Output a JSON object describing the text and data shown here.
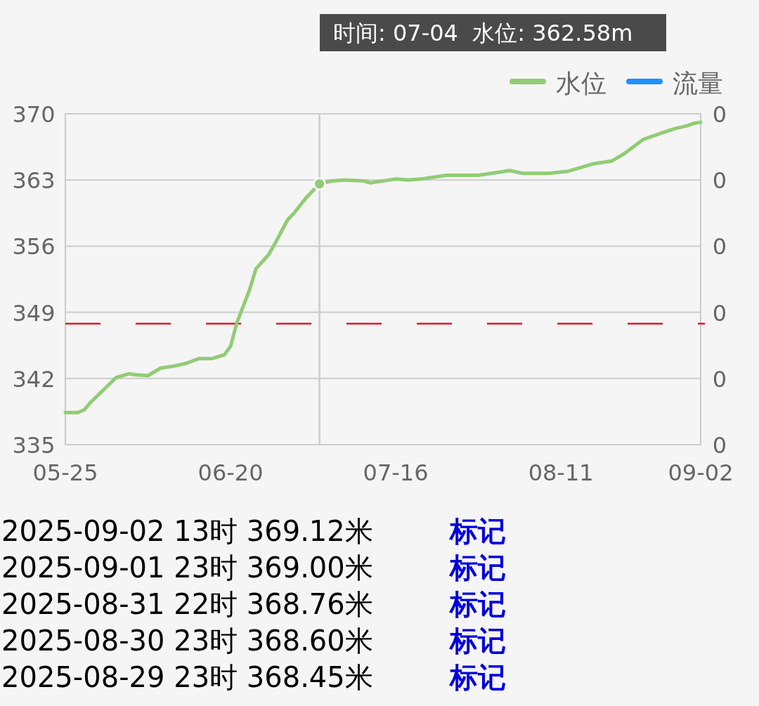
{
  "chart_data": {
    "type": "line",
    "x": [
      "--05-25",
      "--05-27",
      "--05-28",
      "--05-29",
      "--05-31",
      "--06-02",
      "--06-04",
      "--06-05",
      "--06-07",
      "--06-09",
      "--06-11",
      "--06-13",
      "--06-15",
      "--06-17",
      "--06-19",
      "--06-20",
      "--06-21",
      "--06-23",
      "--06-24",
      "--06-26",
      "--06-27",
      "--06-29",
      "--06-30",
      "--07-02",
      "--07-04",
      "--07-06",
      "--07-08",
      "--07-11",
      "--07-12",
      "--07-16",
      "--07-18",
      "--07-20",
      "--07-24",
      "--07-29",
      "--08-01",
      "--08-03",
      "--08-05",
      "--08-09",
      "--08-12",
      "--08-16",
      "--08-19",
      "--08-21",
      "--08-24",
      "--08-27",
      "--08-29",
      "--08-30",
      "--08-31",
      "--09-01",
      "--09-02"
    ],
    "series": [
      {
        "name": "水位",
        "color": "#91cc75",
        "values": [
          338.4,
          338.4,
          338.7,
          339.5,
          340.8,
          342.1,
          342.5,
          342.4,
          342.3,
          343.1,
          343.3,
          343.6,
          344.1,
          344.1,
          344.5,
          345.4,
          347.9,
          351.4,
          353.6,
          355.1,
          356.3,
          358.8,
          359.5,
          361.2,
          362.58,
          362.9,
          363.0,
          362.9,
          362.7,
          363.1,
          363.0,
          363.1,
          363.5,
          363.5,
          363.8,
          364.0,
          363.7,
          363.7,
          363.9,
          364.7,
          365.0,
          365.8,
          367.3,
          368.0,
          368.45,
          368.6,
          368.76,
          369.0,
          369.12
        ]
      },
      {
        "name": "流量",
        "color": "#1e90ff",
        "values": [
          null,
          null,
          null,
          null,
          null,
          null,
          null,
          null,
          null,
          null,
          null,
          null,
          null,
          null,
          null,
          null,
          null,
          null,
          null,
          null,
          null,
          null,
          null,
          null,
          null,
          null,
          null,
          null,
          null,
          null,
          null,
          null,
          null,
          null,
          null,
          null,
          null,
          null,
          null,
          null,
          null,
          null,
          null,
          null,
          null,
          null,
          null,
          null,
          null
        ]
      }
    ],
    "xlim": [
      "--05-25",
      "--09-02"
    ],
    "xticks": [
      {
        "value": "--05-25",
        "label": "05-25"
      },
      {
        "value": "--06-20",
        "label": "06-20"
      },
      {
        "value": "--07-16",
        "label": "07-16"
      },
      {
        "value": "--08-11",
        "label": "08-11"
      },
      {
        "value": "--09-02",
        "label": "09-02"
      }
    ],
    "ylim": [
      335,
      370
    ],
    "yticks": [
      335,
      342,
      349,
      356,
      363,
      370
    ],
    "y2lim": [
      0,
      0.25
    ],
    "y2ticks": [
      {
        "value": 0,
        "label": "0"
      },
      {
        "value": 0.05,
        "label": "0"
      },
      {
        "value": 0.1,
        "label": "0"
      },
      {
        "value": 0.15,
        "label": "0"
      },
      {
        "value": 0.2,
        "label": "0"
      },
      {
        "value": 0.25,
        "label": "0"
      }
    ],
    "grid": "y",
    "legend": "top right",
    "marker": "none",
    "line_style": "solid",
    "ref_lines": [
      {
        "axis": "y",
        "value": 347.8,
        "color": "#e0182c",
        "line_style": "dashed"
      },
      {
        "axis": "x",
        "value": "--07-04",
        "color": "#cccccc",
        "line_style": "solid"
      }
    ],
    "annotations": [
      "时间: 07-04  水位: 362.58m",
      "2025-09-02 13时 369.12米",
      "标记",
      "2025-09-01 23时 369.00米",
      "标记",
      "2025-08-31 22时 368.76米",
      "标记",
      "2025-08-30 23时 368.60米",
      "标记",
      "2025-08-29 23时 368.45米",
      "标记"
    ]
  }
}
